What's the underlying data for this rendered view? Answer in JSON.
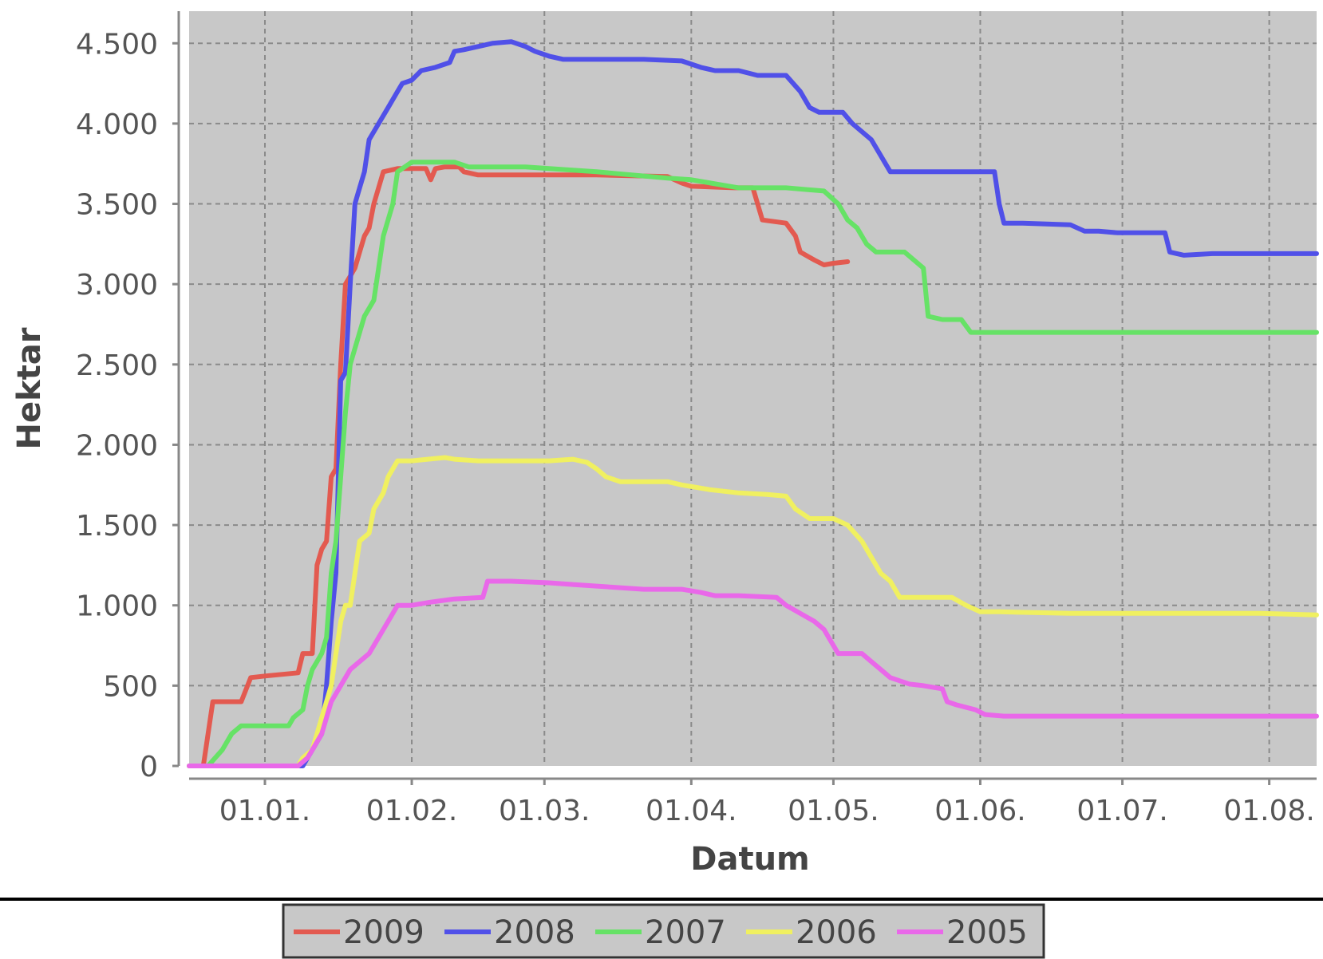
{
  "chart_data": {
    "type": "line",
    "title": "",
    "xlabel": "Datum",
    "ylabel": "Hektar",
    "x_unit": "day of year",
    "xlim": [
      -16,
      222
    ],
    "ylim": [
      0,
      4700
    ],
    "x_ticks": [
      {
        "x": 0,
        "label": "01.01."
      },
      {
        "x": 31,
        "label": "01.02."
      },
      {
        "x": 59,
        "label": "01.03."
      },
      {
        "x": 90,
        "label": "01.04."
      },
      {
        "x": 120,
        "label": "01.05."
      },
      {
        "x": 151,
        "label": "01.06."
      },
      {
        "x": 181,
        "label": "01.07."
      },
      {
        "x": 212,
        "label": "01.08."
      }
    ],
    "y_ticks": [
      {
        "y": 0,
        "label": "0"
      },
      {
        "y": 500,
        "label": "500"
      },
      {
        "y": 1000,
        "label": "1.000"
      },
      {
        "y": 1500,
        "label": "1.500"
      },
      {
        "y": 2000,
        "label": "2.000"
      },
      {
        "y": 2500,
        "label": "2.500"
      },
      {
        "y": 3000,
        "label": "3.000"
      },
      {
        "y": 3500,
        "label": "3.500"
      },
      {
        "y": 4000,
        "label": "4.000"
      },
      {
        "y": 4500,
        "label": "4.500"
      }
    ],
    "grid": true,
    "legend_position": "bottom-center",
    "series": [
      {
        "name": "2009",
        "color": "#e35a50",
        "points": [
          [
            -16,
            0
          ],
          [
            -13,
            0
          ],
          [
            -11,
            400
          ],
          [
            -5,
            400
          ],
          [
            -3,
            550
          ],
          [
            0,
            560
          ],
          [
            7,
            580
          ],
          [
            8,
            700
          ],
          [
            10,
            700
          ],
          [
            11,
            1250
          ],
          [
            12,
            1350
          ],
          [
            13,
            1400
          ],
          [
            14,
            1800
          ],
          [
            15,
            1850
          ],
          [
            16,
            2500
          ],
          [
            17,
            3000
          ],
          [
            18,
            3050
          ],
          [
            19,
            3100
          ],
          [
            20,
            3200
          ],
          [
            21,
            3300
          ],
          [
            22,
            3350
          ],
          [
            23,
            3500
          ],
          [
            25,
            3700
          ],
          [
            28,
            3720
          ],
          [
            34,
            3720
          ],
          [
            35,
            3650
          ],
          [
            36,
            3720
          ],
          [
            38,
            3730
          ],
          [
            41,
            3730
          ],
          [
            42,
            3700
          ],
          [
            45,
            3680
          ],
          [
            55,
            3680
          ],
          [
            70,
            3680
          ],
          [
            85,
            3670
          ],
          [
            88,
            3630
          ],
          [
            90,
            3610
          ],
          [
            99,
            3600
          ],
          [
            103,
            3600
          ],
          [
            105,
            3400
          ],
          [
            110,
            3380
          ],
          [
            112,
            3300
          ],
          [
            113,
            3200
          ],
          [
            116,
            3150
          ],
          [
            118,
            3120
          ],
          [
            120,
            3130
          ],
          [
            123,
            3140
          ]
        ]
      },
      {
        "name": "2008",
        "color": "#5050e8",
        "points": [
          [
            -16,
            0
          ],
          [
            -10,
            0
          ],
          [
            0,
            0
          ],
          [
            8,
            0
          ],
          [
            10,
            100
          ],
          [
            12,
            200
          ],
          [
            13,
            500
          ],
          [
            14,
            900
          ],
          [
            15,
            1200
          ],
          [
            16,
            2400
          ],
          [
            17,
            2450
          ],
          [
            18,
            3000
          ],
          [
            19,
            3500
          ],
          [
            20,
            3600
          ],
          [
            21,
            3700
          ],
          [
            22,
            3900
          ],
          [
            24,
            4000
          ],
          [
            26,
            4100
          ],
          [
            28,
            4200
          ],
          [
            29,
            4250
          ],
          [
            31,
            4270
          ],
          [
            33,
            4330
          ],
          [
            36,
            4350
          ],
          [
            39,
            4380
          ],
          [
            40,
            4450
          ],
          [
            42,
            4460
          ],
          [
            45,
            4480
          ],
          [
            48,
            4500
          ],
          [
            52,
            4510
          ],
          [
            55,
            4480
          ],
          [
            57,
            4450
          ],
          [
            60,
            4420
          ],
          [
            63,
            4400
          ],
          [
            70,
            4400
          ],
          [
            80,
            4400
          ],
          [
            88,
            4390
          ],
          [
            92,
            4350
          ],
          [
            95,
            4330
          ],
          [
            100,
            4330
          ],
          [
            104,
            4300
          ],
          [
            110,
            4300
          ],
          [
            113,
            4200
          ],
          [
            115,
            4100
          ],
          [
            117,
            4070
          ],
          [
            122,
            4070
          ],
          [
            124,
            4000
          ],
          [
            126,
            3950
          ],
          [
            128,
            3900
          ],
          [
            130,
            3800
          ],
          [
            132,
            3700
          ],
          [
            136,
            3700
          ],
          [
            150,
            3700
          ],
          [
            154,
            3700
          ],
          [
            155,
            3500
          ],
          [
            156,
            3380
          ],
          [
            160,
            3380
          ],
          [
            170,
            3370
          ],
          [
            173,
            3330
          ],
          [
            176,
            3330
          ],
          [
            180,
            3320
          ],
          [
            184,
            3320
          ],
          [
            190,
            3320
          ],
          [
            191,
            3200
          ],
          [
            194,
            3180
          ],
          [
            200,
            3190
          ],
          [
            210,
            3190
          ],
          [
            222,
            3190
          ]
        ]
      },
      {
        "name": "2007",
        "color": "#66e266",
        "points": [
          [
            -16,
            0
          ],
          [
            -12,
            0
          ],
          [
            -9,
            100
          ],
          [
            -7,
            200
          ],
          [
            -5,
            250
          ],
          [
            0,
            250
          ],
          [
            5,
            250
          ],
          [
            6,
            300
          ],
          [
            8,
            350
          ],
          [
            9,
            500
          ],
          [
            10,
            600
          ],
          [
            11,
            650
          ],
          [
            12,
            700
          ],
          [
            13,
            800
          ],
          [
            14,
            1200
          ],
          [
            15,
            1400
          ],
          [
            16,
            1800
          ],
          [
            17,
            2200
          ],
          [
            18,
            2500
          ],
          [
            19,
            2600
          ],
          [
            20,
            2700
          ],
          [
            21,
            2800
          ],
          [
            22,
            2850
          ],
          [
            23,
            2900
          ],
          [
            24,
            3100
          ],
          [
            25,
            3300
          ],
          [
            27,
            3500
          ],
          [
            28,
            3700
          ],
          [
            31,
            3760
          ],
          [
            40,
            3760
          ],
          [
            43,
            3730
          ],
          [
            55,
            3730
          ],
          [
            70,
            3700
          ],
          [
            85,
            3660
          ],
          [
            90,
            3650
          ],
          [
            100,
            3600
          ],
          [
            110,
            3600
          ],
          [
            118,
            3580
          ],
          [
            121,
            3500
          ],
          [
            123,
            3400
          ],
          [
            125,
            3350
          ],
          [
            127,
            3250
          ],
          [
            129,
            3200
          ],
          [
            133,
            3200
          ],
          [
            135,
            3200
          ],
          [
            137,
            3150
          ],
          [
            139,
            3100
          ],
          [
            140,
            2800
          ],
          [
            143,
            2780
          ],
          [
            147,
            2780
          ],
          [
            149,
            2700
          ],
          [
            153,
            2700
          ],
          [
            170,
            2700
          ],
          [
            190,
            2700
          ],
          [
            210,
            2700
          ],
          [
            222,
            2700
          ]
        ]
      },
      {
        "name": "2006",
        "color": "#f0f060",
        "points": [
          [
            -16,
            0
          ],
          [
            -10,
            0
          ],
          [
            0,
            0
          ],
          [
            7,
            0
          ],
          [
            8,
            50
          ],
          [
            10,
            100
          ],
          [
            12,
            300
          ],
          [
            14,
            500
          ],
          [
            15,
            700
          ],
          [
            16,
            900
          ],
          [
            17,
            1000
          ],
          [
            18,
            1000
          ],
          [
            19,
            1200
          ],
          [
            20,
            1400
          ],
          [
            22,
            1450
          ],
          [
            23,
            1600
          ],
          [
            25,
            1700
          ],
          [
            26,
            1800
          ],
          [
            28,
            1900
          ],
          [
            31,
            1900
          ],
          [
            38,
            1920
          ],
          [
            40,
            1910
          ],
          [
            45,
            1900
          ],
          [
            55,
            1900
          ],
          [
            60,
            1900
          ],
          [
            65,
            1910
          ],
          [
            68,
            1890
          ],
          [
            70,
            1850
          ],
          [
            72,
            1800
          ],
          [
            75,
            1770
          ],
          [
            85,
            1770
          ],
          [
            88,
            1750
          ],
          [
            90,
            1740
          ],
          [
            94,
            1720
          ],
          [
            100,
            1700
          ],
          [
            106,
            1690
          ],
          [
            110,
            1680
          ],
          [
            112,
            1600
          ],
          [
            115,
            1540
          ],
          [
            120,
            1540
          ],
          [
            123,
            1500
          ],
          [
            126,
            1400
          ],
          [
            128,
            1300
          ],
          [
            130,
            1200
          ],
          [
            132,
            1150
          ],
          [
            134,
            1050
          ],
          [
            137,
            1050
          ],
          [
            145,
            1050
          ],
          [
            148,
            1000
          ],
          [
            151,
            960
          ],
          [
            155,
            960
          ],
          [
            170,
            950
          ],
          [
            190,
            950
          ],
          [
            210,
            950
          ],
          [
            222,
            940
          ]
        ]
      },
      {
        "name": "2005",
        "color": "#e968e9",
        "points": [
          [
            -16,
            0
          ],
          [
            -10,
            0
          ],
          [
            0,
            0
          ],
          [
            7,
            0
          ],
          [
            9,
            50
          ],
          [
            10,
            100
          ],
          [
            12,
            200
          ],
          [
            14,
            400
          ],
          [
            16,
            500
          ],
          [
            18,
            600
          ],
          [
            20,
            650
          ],
          [
            22,
            700
          ],
          [
            24,
            800
          ],
          [
            26,
            900
          ],
          [
            28,
            1000
          ],
          [
            31,
            1000
          ],
          [
            35,
            1020
          ],
          [
            40,
            1040
          ],
          [
            46,
            1050
          ],
          [
            47,
            1150
          ],
          [
            52,
            1150
          ],
          [
            60,
            1140
          ],
          [
            65,
            1130
          ],
          [
            70,
            1120
          ],
          [
            80,
            1100
          ],
          [
            88,
            1100
          ],
          [
            92,
            1080
          ],
          [
            95,
            1060
          ],
          [
            100,
            1060
          ],
          [
            108,
            1050
          ],
          [
            110,
            1000
          ],
          [
            113,
            950
          ],
          [
            116,
            900
          ],
          [
            118,
            850
          ],
          [
            119,
            800
          ],
          [
            121,
            700
          ],
          [
            126,
            700
          ],
          [
            128,
            650
          ],
          [
            130,
            600
          ],
          [
            132,
            550
          ],
          [
            136,
            510
          ],
          [
            139,
            500
          ],
          [
            143,
            480
          ],
          [
            144,
            400
          ],
          [
            146,
            380
          ],
          [
            150,
            350
          ],
          [
            152,
            320
          ],
          [
            156,
            310
          ],
          [
            170,
            310
          ],
          [
            190,
            310
          ],
          [
            210,
            310
          ],
          [
            222,
            310
          ]
        ]
      }
    ]
  }
}
